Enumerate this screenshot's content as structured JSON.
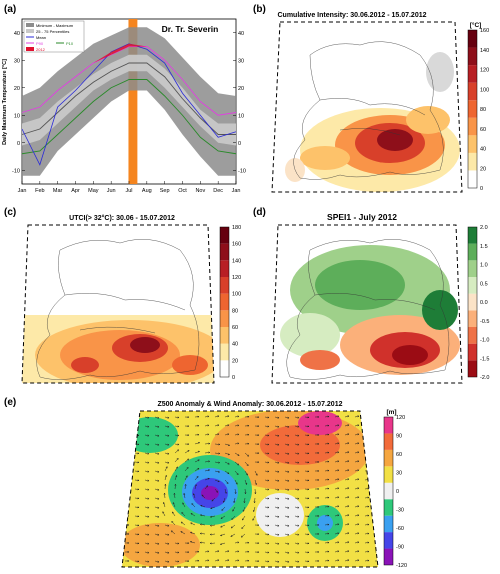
{
  "panels": {
    "a": {
      "letter": "(a)",
      "station": "Dr. Tr. Severin",
      "ylabel": "Daily Maximum Temperature [°C]",
      "legend": {
        "min_max": "Minimum - Maximum",
        "p25_75": "25 - 75 Percentiles",
        "mean": "Mean",
        "p90": "P90",
        "p10": "P10",
        "y2012": "2012"
      },
      "months": [
        "Jan",
        "Feb",
        "Mar",
        "Apr",
        "May",
        "Jun",
        "Jul",
        "Aug",
        "Sep",
        "Oct",
        "Nov",
        "Dec",
        "Jan"
      ],
      "yticks": [
        "-10",
        "0",
        "10",
        "20",
        "30",
        "40"
      ]
    },
    "b": {
      "letter": "(b)",
      "title": "Cumulative Intensity: 30.06.2012 - 15.07.2012",
      "unit": "[°C]",
      "ticks": [
        "160",
        "140",
        "120",
        "100",
        "80",
        "60",
        "40",
        "20",
        "0"
      ]
    },
    "c": {
      "letter": "(c)",
      "title": "UTCI(> 32°C): 30.06 - 15.07.2012",
      "ticks": [
        "180",
        "160",
        "140",
        "120",
        "100",
        "80",
        "60",
        "40",
        "20",
        "0"
      ]
    },
    "d": {
      "letter": "(d)",
      "title": "SPEI1 - July 2012",
      "ticks": [
        "2.0",
        "1.5",
        "1.0",
        "0.5",
        "0.0",
        "-0.5",
        "-1.0",
        "-1.5",
        "-2.0"
      ]
    },
    "e": {
      "letter": "(e)",
      "title": "Z500 Anomaly & Wind Anomaly: 30.06.2012 - 15.07.2012",
      "unit": "[m]",
      "ticks": [
        "120",
        "90",
        "60",
        "30",
        "0",
        "-30",
        "-60",
        "-90",
        "-120"
      ]
    }
  },
  "chart_data": [
    {
      "type": "area",
      "panel": "a",
      "title": "Dr. Tr. Severin",
      "ylabel": "Daily Maximum Temperature [°C]",
      "ylim": [
        -15,
        45
      ],
      "categories": [
        "Jan",
        "Feb",
        "Mar",
        "Apr",
        "May",
        "Jun",
        "Jul",
        "Aug",
        "Sep",
        "Oct",
        "Nov",
        "Dec",
        "Jan"
      ],
      "highlight_period": "30.06 - 15.07",
      "series": [
        {
          "name": "Minimum - Maximum",
          "lower": [
            -12,
            -12,
            -3,
            3,
            9,
            15,
            19,
            19,
            12,
            3,
            -5,
            -12,
            -12
          ],
          "upper": [
            17,
            20,
            26,
            31,
            36,
            39,
            42,
            42,
            38,
            31,
            24,
            18,
            17
          ]
        },
        {
          "name": "25 - 75 Percentiles",
          "lower": [
            -1,
            1,
            7,
            13,
            19,
            23,
            26,
            26,
            20,
            13,
            6,
            0,
            -1
          ],
          "upper": [
            7,
            9,
            15,
            20,
            25,
            29,
            32,
            32,
            27,
            20,
            12,
            7,
            7
          ]
        },
        {
          "name": "Mean",
          "values": [
            3,
            5,
            11,
            17,
            22,
            26,
            29,
            29,
            24,
            16,
            9,
            3,
            3
          ]
        },
        {
          "name": "P90",
          "values": [
            11,
            13,
            19,
            24,
            29,
            32,
            35,
            35,
            30,
            23,
            15,
            10,
            11
          ]
        },
        {
          "name": "P10",
          "values": [
            -4,
            -3,
            3,
            9,
            15,
            20,
            23,
            23,
            17,
            10,
            2,
            -3,
            -4
          ]
        },
        {
          "name": "2012",
          "values": [
            5,
            -8,
            13,
            19,
            26,
            33,
            36,
            34,
            29,
            18,
            10,
            2,
            4
          ]
        }
      ]
    },
    {
      "type": "heatmap",
      "panel": "b",
      "title": "Cumulative Intensity: 30.06.2012 - 15.07.2012",
      "colorbar_range": [
        0,
        160
      ],
      "unit": "[°C]"
    },
    {
      "type": "heatmap",
      "panel": "c",
      "title": "UTCI(> 32°C): 30.06 - 15.07.2012",
      "colorbar_range": [
        0,
        180
      ]
    },
    {
      "type": "heatmap",
      "panel": "d",
      "title": "SPEI1 - July 2012",
      "colorbar_range": [
        -2.0,
        2.0
      ]
    },
    {
      "type": "heatmap",
      "panel": "e",
      "title": "Z500 Anomaly & Wind Anomaly: 30.06.2012 - 15.07.2012",
      "colorbar_range": [
        -120,
        120
      ],
      "unit": "[m]"
    }
  ],
  "colors": {
    "minmax": "#8c8c8c",
    "pct": "#c8c8c8",
    "mean": "#2a2ad8",
    "p90": "#e040e0",
    "p10": "#2a8a2a",
    "y2012": "#e01030",
    "highlight": "#f5851f",
    "heat_scale": [
      "#ffffff",
      "#fde9a8",
      "#fdc26a",
      "#f99448",
      "#ee6530",
      "#d8402a",
      "#b81f24",
      "#8e0f1a",
      "#66000f"
    ],
    "spei_scale": [
      "#9b0c14",
      "#d0312b",
      "#ef7247",
      "#fbb07a",
      "#fbe3c7",
      "#d6ecc1",
      "#9fd08a",
      "#5dae5a",
      "#1e7d37"
    ],
    "z500_scale": [
      "#8a13b7",
      "#4545e8",
      "#3aa0f0",
      "#2ec87a",
      "#f0f0f0",
      "#f2e045",
      "#f5a640",
      "#f26b3a",
      "#e8368a"
    ]
  }
}
